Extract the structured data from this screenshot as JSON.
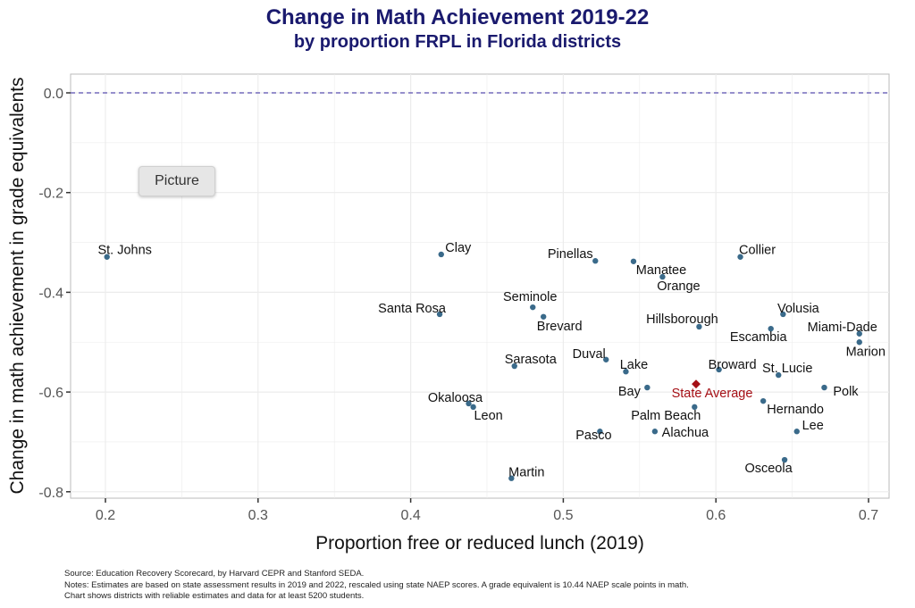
{
  "chart_data": {
    "type": "scatter",
    "title": "Change in Math Achievement 2019-22",
    "subtitle": "by proportion FRPL in Florida districts",
    "xlabel": "Proportion free or reduced lunch (2019)",
    "ylabel": "Change in math achievement in grade equivalents",
    "xlim": [
      0.18,
      0.71
    ],
    "ylim": [
      -0.82,
      0.04
    ],
    "xticks": [
      "0.2",
      "0.3",
      "0.4",
      "0.5",
      "0.6",
      "0.7"
    ],
    "yticks": [
      "0.0",
      "-0.2",
      "-0.4",
      "-0.6",
      "-0.8"
    ],
    "grid": true,
    "reference_line": {
      "y": 0,
      "style": "dashed",
      "color": "#5b4fb0"
    },
    "point_color": "#3a6a8a",
    "highlight_color": "#a50f15",
    "points": [
      {
        "label": "St. Johns",
        "x": 0.201,
        "y": -0.329
      },
      {
        "label": "Clay",
        "x": 0.42,
        "y": -0.324
      },
      {
        "label": "Pinellas",
        "x": 0.521,
        "y": -0.337
      },
      {
        "label": "Manatee",
        "x": 0.546,
        "y": -0.338
      },
      {
        "label": "Orange",
        "x": 0.565,
        "y": -0.369
      },
      {
        "label": "Collier",
        "x": 0.616,
        "y": -0.329
      },
      {
        "label": "Seminole",
        "x": 0.48,
        "y": -0.43
      },
      {
        "label": "Brevard",
        "x": 0.487,
        "y": -0.449
      },
      {
        "label": "Santa Rosa",
        "x": 0.419,
        "y": -0.444
      },
      {
        "label": "Hillsborough",
        "x": 0.589,
        "y": -0.469
      },
      {
        "label": "Volusia",
        "x": 0.644,
        "y": -0.444
      },
      {
        "label": "Escambia",
        "x": 0.636,
        "y": -0.473
      },
      {
        "label": "Miami-Dade",
        "x": 0.694,
        "y": -0.483
      },
      {
        "label": "Marion",
        "x": 0.694,
        "y": -0.5
      },
      {
        "label": "Sarasota",
        "x": 0.468,
        "y": -0.548
      },
      {
        "label": "Duval",
        "x": 0.528,
        "y": -0.535
      },
      {
        "label": "Lake",
        "x": 0.541,
        "y": -0.559
      },
      {
        "label": "Broward",
        "x": 0.602,
        "y": -0.555
      },
      {
        "label": "St. Lucie",
        "x": 0.641,
        "y": -0.566
      },
      {
        "label": "Bay",
        "x": 0.555,
        "y": -0.591
      },
      {
        "label": "State Average",
        "x": 0.587,
        "y": -0.584,
        "highlight": true
      },
      {
        "label": "Polk",
        "x": 0.671,
        "y": -0.591
      },
      {
        "label": "Okaloosa",
        "x": 0.438,
        "y": -0.623
      },
      {
        "label": "Leon",
        "x": 0.441,
        "y": -0.63
      },
      {
        "label": "Hernando",
        "x": 0.631,
        "y": -0.618
      },
      {
        "label": "Palm Beach",
        "x": 0.586,
        "y": -0.63
      },
      {
        "label": "Pasco",
        "x": 0.524,
        "y": -0.679
      },
      {
        "label": "Alachua",
        "x": 0.56,
        "y": -0.679
      },
      {
        "label": "Lee",
        "x": 0.653,
        "y": -0.679
      },
      {
        "label": "Osceola",
        "x": 0.645,
        "y": -0.736
      },
      {
        "label": "Martin",
        "x": 0.466,
        "y": -0.773
      }
    ]
  },
  "notes": [
    "Source: Education Recovery Scorecard, by Harvard CEPR and Stanford SEDA.",
    "Notes: Estimates are based on state assessment results in 2019 and 2022, rescaled using state NAEP scores. A grade equivalent is 10.44 NAEP scale points in math.",
    "Chart shows districts with reliable estimates and data for at least 5200 students."
  ],
  "overlay": {
    "picture_label": "Picture"
  }
}
